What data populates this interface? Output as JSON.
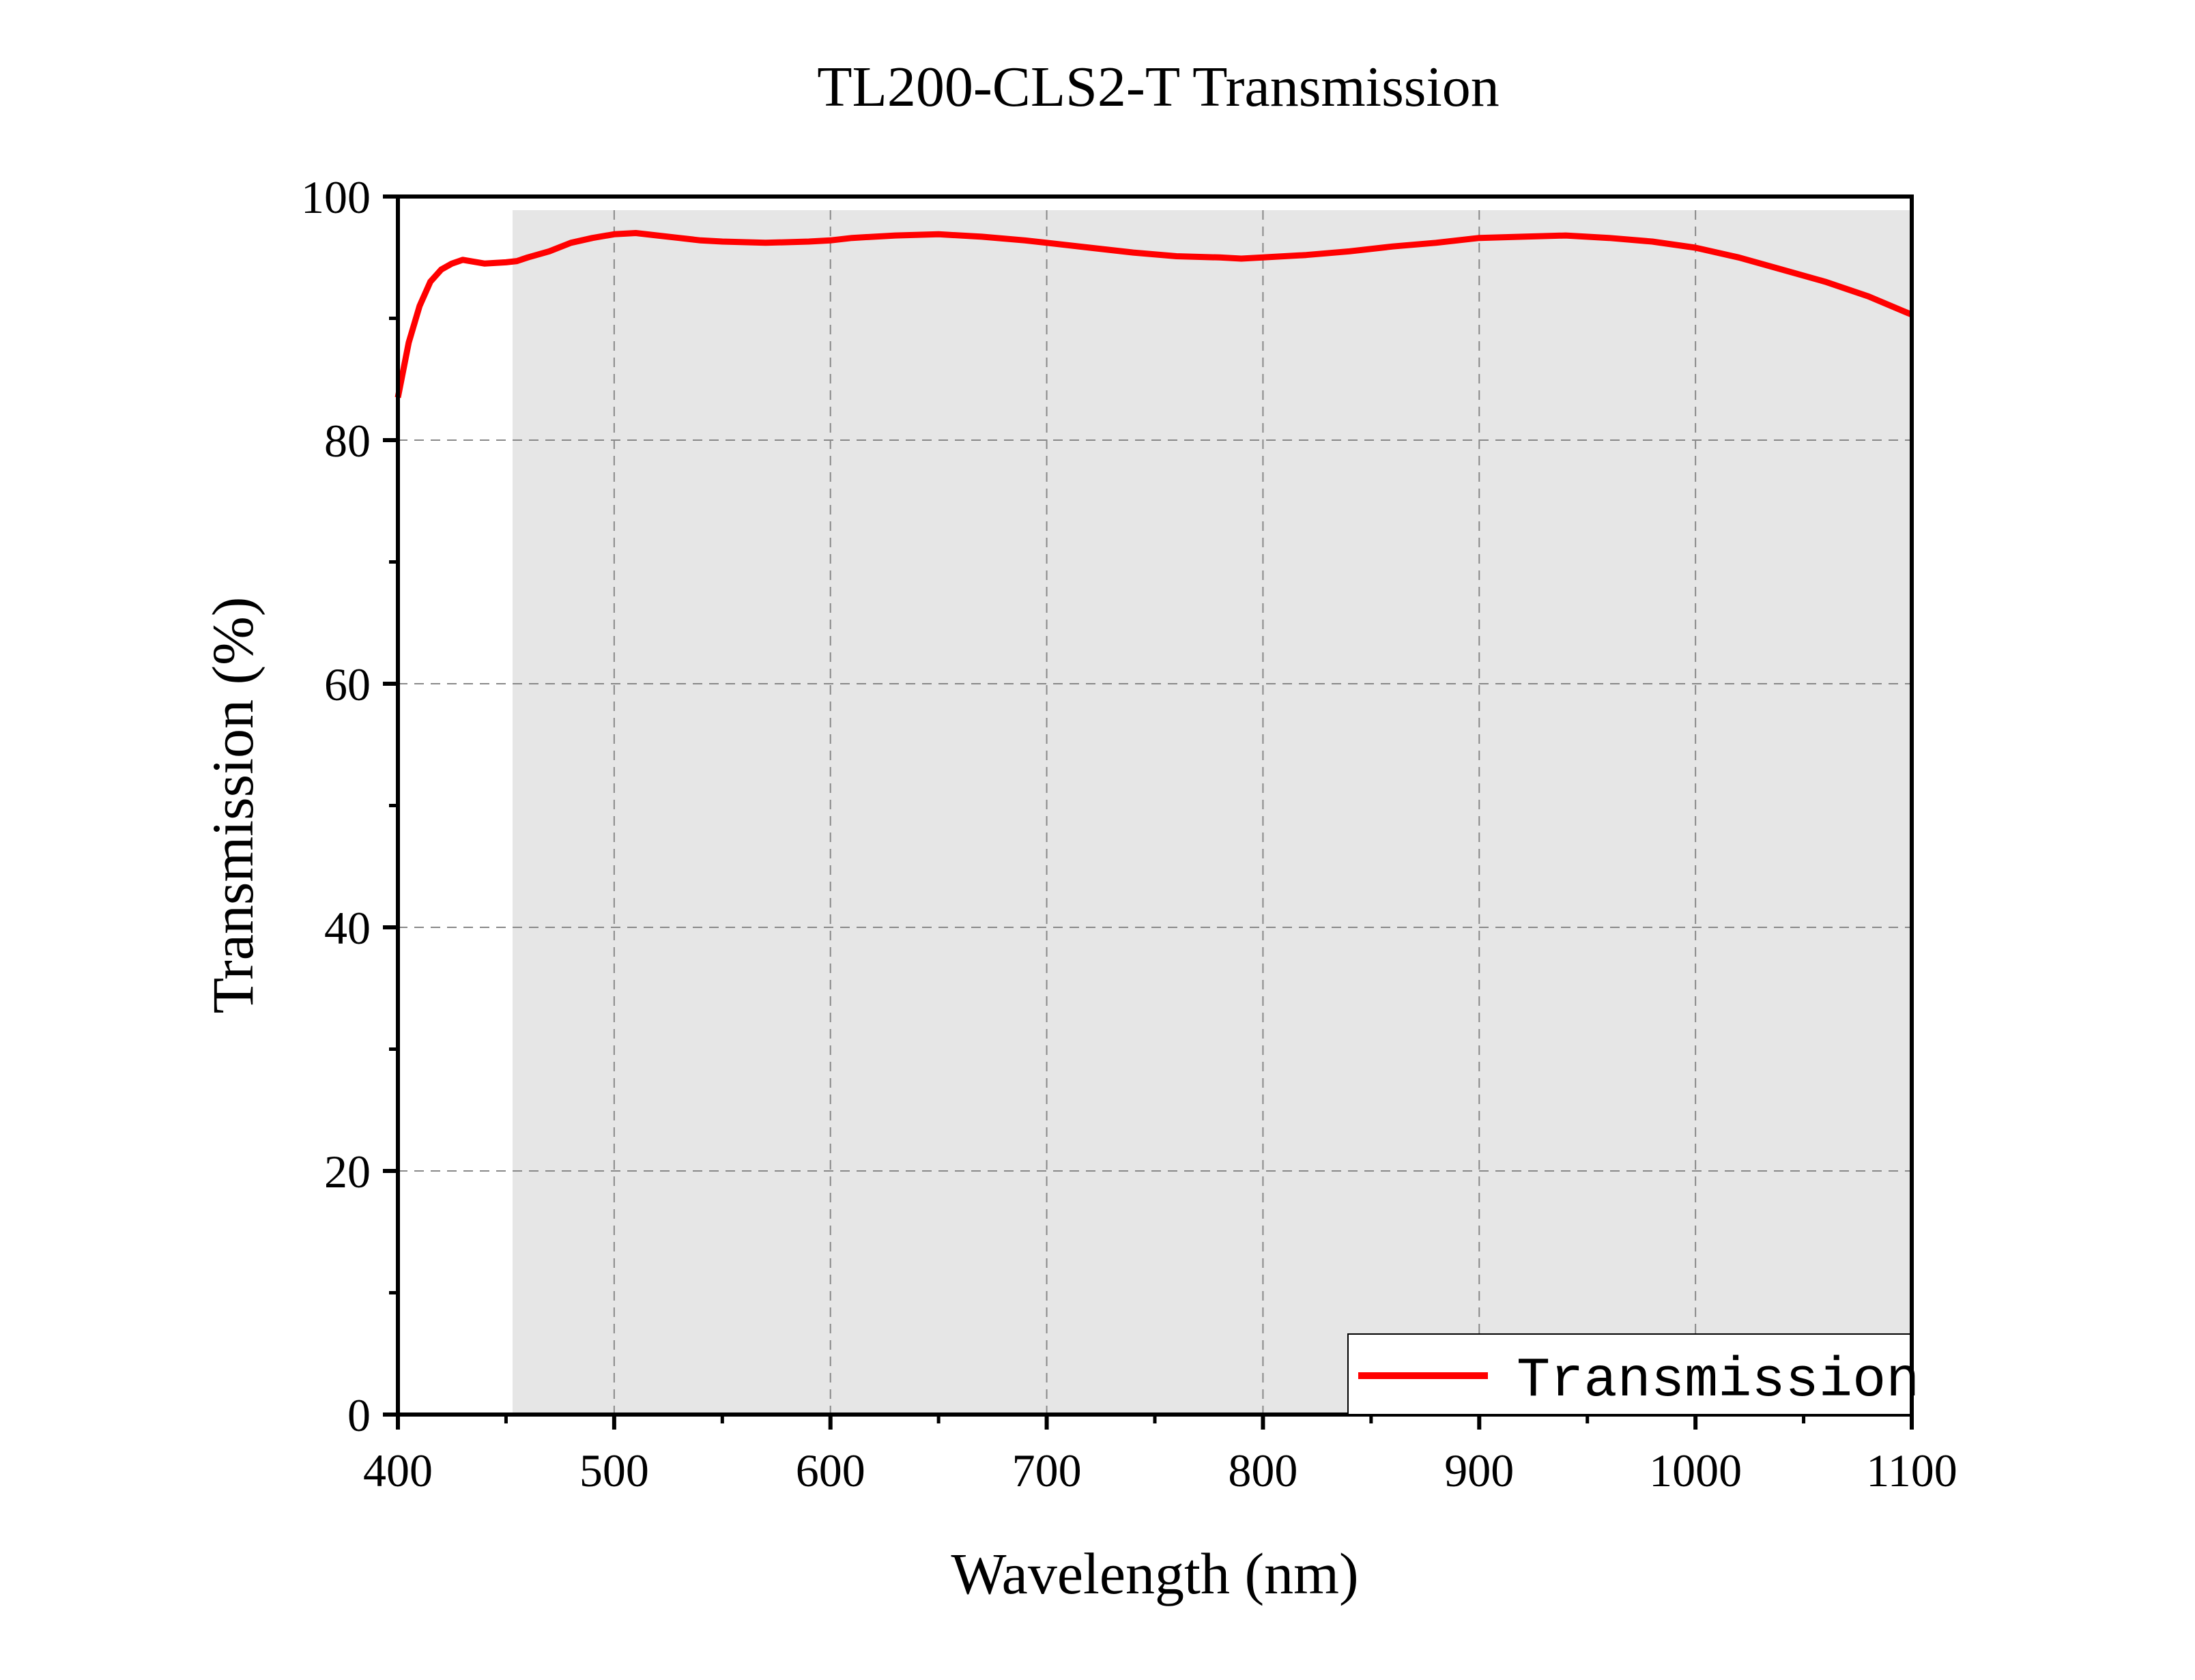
{
  "chart_data": {
    "type": "line",
    "title": "TL200-CLS2-T Transmission",
    "xlabel": "Wavelength (nm)",
    "ylabel": "Transmission (%)",
    "xlim": [
      400,
      1100
    ],
    "ylim": [
      0,
      100
    ],
    "xticks": [
      400,
      500,
      600,
      700,
      800,
      900,
      1000,
      1100
    ],
    "yticks": [
      0,
      20,
      40,
      60,
      80,
      100
    ],
    "xtick_labels": [
      "400",
      "500",
      "600",
      "700",
      "800",
      "900",
      "1000",
      "1100"
    ],
    "ytick_labels": [
      "0",
      "20",
      "40",
      "60",
      "80",
      "100"
    ],
    "grid": true,
    "shaded_region": {
      "x_start": 453,
      "x_end": 1100,
      "color": "#e6e6e6"
    },
    "legend": {
      "position": "bottom-right",
      "entries": [
        "Transmission"
      ]
    },
    "series": [
      {
        "name": "Transmission",
        "color": "#ff0000",
        "x": [
          400,
          405,
          410,
          415,
          420,
          425,
          430,
          440,
          450,
          455,
          460,
          470,
          480,
          490,
          500,
          510,
          520,
          530,
          540,
          550,
          570,
          590,
          600,
          610,
          630,
          650,
          670,
          690,
          700,
          720,
          740,
          760,
          780,
          790,
          800,
          820,
          840,
          860,
          880,
          900,
          920,
          940,
          960,
          980,
          1000,
          1020,
          1040,
          1060,
          1080,
          1100
        ],
        "y": [
          83.5,
          88.0,
          91.0,
          93.0,
          94.0,
          94.5,
          94.8,
          94.5,
          94.6,
          94.7,
          95.0,
          95.5,
          96.2,
          96.6,
          96.9,
          97.0,
          96.8,
          96.6,
          96.4,
          96.3,
          96.2,
          96.3,
          96.4,
          96.6,
          96.8,
          96.9,
          96.7,
          96.4,
          96.2,
          95.8,
          95.4,
          95.1,
          95.0,
          94.9,
          95.0,
          95.2,
          95.5,
          95.9,
          96.2,
          96.6,
          96.7,
          96.8,
          96.6,
          96.3,
          95.8,
          95.0,
          94.0,
          93.0,
          91.8,
          90.3
        ]
      }
    ]
  }
}
